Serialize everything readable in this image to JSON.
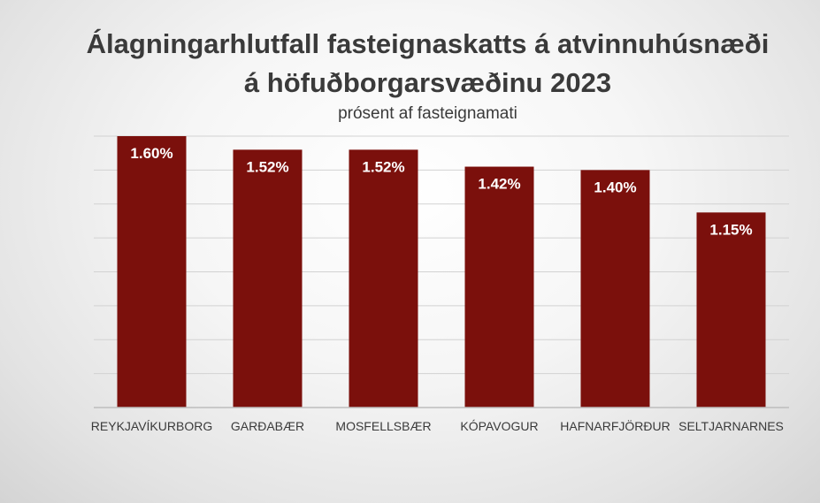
{
  "chart_data": {
    "type": "bar",
    "title_line1": "Álagningarhlutfall fasteignaskatts á atvinnuhúsnæði",
    "title_line2": "á höfuðborgarsvæðinu 2023",
    "subtitle": "prósent af fasteignamati",
    "categories": [
      "REYKJAVÍKURBORG",
      "GARÐABÆR",
      "MOSFELLSBÆR",
      "KÓPAVOGUR",
      "HAFNARFJÖRÐUR",
      "SELTJARNARNES"
    ],
    "values": [
      1.6,
      1.52,
      1.52,
      1.42,
      1.4,
      1.15
    ],
    "value_labels": [
      "1.60%",
      "1.52%",
      "1.52%",
      "1.42%",
      "1.40%",
      "1.15%"
    ],
    "ylim": [
      0,
      1.6
    ],
    "grid": true,
    "bar_color": "#7b100c"
  }
}
